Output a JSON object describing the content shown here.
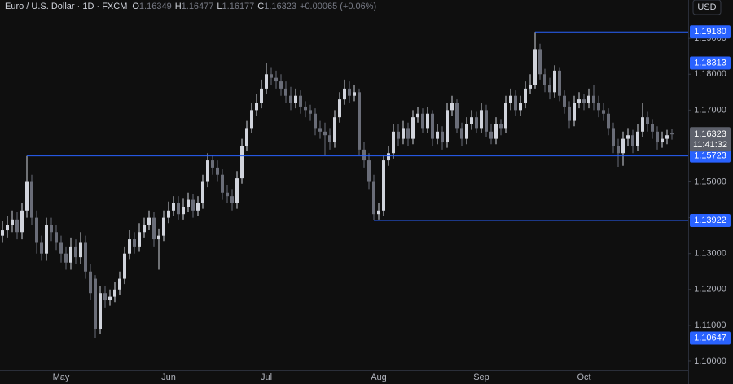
{
  "chart_data": {
    "type": "candlestick",
    "title": "Euro / U.S. Dollar · 1D · FXCM",
    "ohlc_letters": [
      "O",
      "H",
      "L",
      "C"
    ],
    "change_label": "+0.00065 (+0.06%)",
    "currency": "USD",
    "countdown": "11:41:32",
    "up_color": "#d1d4dc",
    "down_color": "#6a6d78",
    "level_color": "#2962ff",
    "grid": false,
    "categories": [
      null,
      null,
      null,
      null,
      null,
      null,
      null,
      null,
      null,
      null,
      null,
      null,
      "May",
      null,
      null,
      null,
      null,
      null,
      null,
      null,
      null,
      null,
      null,
      null,
      null,
      null,
      null,
      null,
      null,
      null,
      null,
      null,
      null,
      null,
      "Jun",
      null,
      null,
      null,
      null,
      null,
      null,
      null,
      null,
      null,
      null,
      null,
      null,
      null,
      null,
      null,
      null,
      null,
      null,
      null,
      "Jul",
      null,
      null,
      null,
      null,
      null,
      null,
      null,
      null,
      null,
      null,
      null,
      null,
      null,
      null,
      null,
      null,
      null,
      null,
      null,
      null,
      null,
      null,
      "Aug",
      null,
      null,
      null,
      null,
      null,
      null,
      null,
      null,
      null,
      null,
      null,
      null,
      null,
      null,
      null,
      null,
      null,
      null,
      null,
      null,
      "Sep",
      null,
      null,
      null,
      null,
      null,
      null,
      null,
      null,
      null,
      null,
      null,
      null,
      null,
      null,
      null,
      null,
      null,
      null,
      null,
      null,
      "Oct",
      null,
      null,
      null,
      null,
      null,
      null,
      null,
      null,
      null,
      null,
      null,
      null,
      null,
      null,
      null,
      null,
      null,
      null
    ],
    "open": [
      1.135,
      1.1365,
      1.138,
      1.1395,
      1.136,
      1.142,
      1.15,
      1.14,
      1.133,
      1.13,
      1.138,
      1.136,
      1.133,
      1.13,
      1.1275,
      1.132,
      1.129,
      1.133,
      1.125,
      1.123,
      1.109,
      1.119,
      1.117,
      1.118,
      1.12,
      1.123,
      1.13,
      1.134,
      1.132,
      1.136,
      1.138,
      1.14,
      1.134,
      1.135,
      1.14,
      1.142,
      1.144,
      1.141,
      1.143,
      1.145,
      1.142,
      1.144,
      1.15,
      1.156,
      1.154,
      1.152,
      1.147,
      1.146,
      1.144,
      1.151,
      1.16,
      1.165,
      1.17,
      1.172,
      1.176,
      1.18,
      1.179,
      1.178,
      1.176,
      1.174,
      1.172,
      1.174,
      1.171,
      1.17,
      1.169,
      1.165,
      1.164,
      1.163,
      1.161,
      1.168,
      1.173,
      1.176,
      1.174,
      1.175,
      1.159,
      1.156,
      1.15,
      1.141,
      1.142,
      1.156,
      1.158,
      1.164,
      1.162,
      1.165,
      1.162,
      1.168,
      1.169,
      1.165,
      1.169,
      1.162,
      1.164,
      1.161,
      1.17,
      1.172,
      1.165,
      1.162,
      1.166,
      1.168,
      1.165,
      1.17,
      1.164,
      1.162,
      1.166,
      1.165,
      1.172,
      1.174,
      1.17,
      1.172,
      1.176,
      1.177,
      1.187,
      1.18,
      1.177,
      1.175,
      1.181,
      1.174,
      1.171,
      1.167,
      1.172,
      1.173,
      1.172,
      1.174,
      1.172,
      1.17,
      1.169,
      1.165,
      1.16,
      1.158,
      1.162,
      1.163,
      1.16,
      1.164,
      1.168,
      1.166,
      1.164,
      1.161,
      1.162,
      1.16349
    ],
    "high": [
      1.139,
      1.1405,
      1.142,
      1.1415,
      1.144,
      1.15723,
      1.152,
      1.142,
      1.135,
      1.14,
      1.14,
      1.138,
      1.135,
      1.132,
      1.1345,
      1.134,
      1.136,
      1.135,
      1.127,
      1.124,
      1.121,
      1.121,
      1.12,
      1.122,
      1.125,
      1.132,
      1.1365,
      1.136,
      1.1385,
      1.14,
      1.142,
      1.1415,
      1.137,
      1.142,
      1.1445,
      1.146,
      1.146,
      1.1455,
      1.147,
      1.1465,
      1.146,
      1.152,
      1.158,
      1.1575,
      1.156,
      1.1535,
      1.149,
      1.148,
      1.153,
      1.162,
      1.167,
      1.172,
      1.1745,
      1.1785,
      1.18313,
      1.182,
      1.181,
      1.18,
      1.178,
      1.1765,
      1.176,
      1.1755,
      1.1725,
      1.1715,
      1.1705,
      1.167,
      1.1665,
      1.165,
      1.17,
      1.175,
      1.1785,
      1.178,
      1.177,
      1.176,
      1.161,
      1.158,
      1.152,
      1.144,
      1.1575,
      1.16,
      1.166,
      1.166,
      1.167,
      1.1665,
      1.17,
      1.171,
      1.1705,
      1.171,
      1.17,
      1.166,
      1.1655,
      1.172,
      1.174,
      1.173,
      1.1665,
      1.168,
      1.17,
      1.1695,
      1.172,
      1.1715,
      1.166,
      1.168,
      1.1675,
      1.174,
      1.176,
      1.1755,
      1.174,
      1.178,
      1.18,
      1.1918,
      1.1885,
      1.1815,
      1.179,
      1.1825,
      1.182,
      1.1755,
      1.1725,
      1.174,
      1.175,
      1.1745,
      1.176,
      1.177,
      1.174,
      1.172,
      1.1705,
      1.1665,
      1.162,
      1.164,
      1.165,
      1.1645,
      1.166,
      1.172,
      1.1695,
      1.1675,
      1.1655,
      1.164,
      1.1645,
      1.16477
    ],
    "low": [
      1.133,
      1.1345,
      1.136,
      1.134,
      1.134,
      1.14,
      1.138,
      1.13,
      1.128,
      1.128,
      1.1335,
      1.131,
      1.1275,
      1.1255,
      1.1255,
      1.127,
      1.127,
      1.123,
      1.117,
      1.10647,
      1.1075,
      1.115,
      1.1155,
      1.1165,
      1.1185,
      1.1215,
      1.1285,
      1.13,
      1.1305,
      1.1345,
      1.1365,
      1.132,
      1.1255,
      1.1335,
      1.1385,
      1.1405,
      1.1395,
      1.1395,
      1.1415,
      1.14,
      1.1405,
      1.1425,
      1.1485,
      1.152,
      1.15,
      1.145,
      1.144,
      1.142,
      1.1425,
      1.1495,
      1.1585,
      1.1635,
      1.1685,
      1.1705,
      1.1745,
      1.177,
      1.176,
      1.174,
      1.172,
      1.17,
      1.1705,
      1.169,
      1.168,
      1.167,
      1.163,
      1.162,
      1.1575,
      1.159,
      1.1595,
      1.1665,
      1.1715,
      1.172,
      1.1725,
      1.1575,
      1.154,
      1.148,
      1.13922,
      1.1395,
      1.1405,
      1.1545,
      1.1565,
      1.16,
      1.1605,
      1.16,
      1.1605,
      1.1665,
      1.1635,
      1.1635,
      1.16,
      1.1605,
      1.159,
      1.1595,
      1.1685,
      1.1635,
      1.16,
      1.1605,
      1.1645,
      1.1635,
      1.1635,
      1.1625,
      1.1605,
      1.1605,
      1.163,
      1.1635,
      1.17,
      1.1685,
      1.1685,
      1.1705,
      1.1745,
      1.176,
      1.1785,
      1.175,
      1.173,
      1.1735,
      1.1725,
      1.169,
      1.165,
      1.1655,
      1.1705,
      1.17,
      1.1705,
      1.17,
      1.168,
      1.167,
      1.163,
      1.158,
      1.1542,
      1.1545,
      1.16,
      1.158,
      1.1585,
      1.1625,
      1.164,
      1.162,
      1.159,
      1.1595,
      1.1605,
      1.16177
    ],
    "close": [
      1.1365,
      1.138,
      1.1395,
      1.136,
      1.142,
      1.15,
      1.14,
      1.133,
      1.13,
      1.138,
      1.136,
      1.133,
      1.13,
      1.1275,
      1.132,
      1.129,
      1.133,
      1.125,
      1.119,
      1.109,
      1.119,
      1.117,
      1.118,
      1.12,
      1.123,
      1.13,
      1.134,
      1.132,
      1.136,
      1.138,
      1.14,
      1.134,
      1.135,
      1.14,
      1.142,
      1.144,
      1.141,
      1.143,
      1.145,
      1.142,
      1.144,
      1.15,
      1.156,
      1.154,
      1.152,
      1.147,
      1.146,
      1.144,
      1.151,
      1.16,
      1.165,
      1.17,
      1.172,
      1.176,
      1.18,
      1.179,
      1.178,
      1.176,
      1.174,
      1.172,
      1.174,
      1.171,
      1.17,
      1.169,
      1.165,
      1.164,
      1.163,
      1.161,
      1.168,
      1.173,
      1.176,
      1.174,
      1.175,
      1.159,
      1.156,
      1.15,
      1.141,
      1.142,
      1.156,
      1.158,
      1.164,
      1.162,
      1.165,
      1.162,
      1.168,
      1.169,
      1.165,
      1.169,
      1.162,
      1.164,
      1.161,
      1.17,
      1.172,
      1.165,
      1.162,
      1.166,
      1.168,
      1.165,
      1.17,
      1.164,
      1.162,
      1.166,
      1.165,
      1.172,
      1.174,
      1.17,
      1.172,
      1.176,
      1.177,
      1.187,
      1.18,
      1.177,
      1.175,
      1.181,
      1.174,
      1.171,
      1.167,
      1.172,
      1.173,
      1.172,
      1.174,
      1.172,
      1.17,
      1.169,
      1.165,
      1.16,
      1.158,
      1.162,
      1.163,
      1.16,
      1.164,
      1.168,
      1.166,
      1.164,
      1.161,
      1.162,
      1.163,
      1.16323
    ],
    "ylim": [
      1.0975,
      1.2007
    ],
    "yticks": [
      {
        "value": 1.1,
        "label": "1.10000"
      },
      {
        "value": 1.11,
        "label": "1.11000"
      },
      {
        "value": 1.12,
        "label": "1.12000"
      },
      {
        "value": 1.13,
        "label": "1.13000"
      },
      {
        "value": 1.14,
        "label": "1.14000"
      },
      {
        "value": 1.15,
        "label": "1.15000"
      },
      {
        "value": 1.16,
        "label": "1.16000"
      },
      {
        "value": 1.17,
        "label": "1.17000"
      },
      {
        "value": 1.18,
        "label": "1.18000"
      },
      {
        "value": 1.19,
        "label": "1.19000"
      }
    ],
    "levels": [
      {
        "value": 1.1918,
        "label": "1.19180"
      },
      {
        "value": 1.18313,
        "label": "1.18313"
      },
      {
        "value": 1.15723,
        "label": "1.15723"
      },
      {
        "value": 1.13922,
        "label": "1.13922"
      },
      {
        "value": 1.10647,
        "label": "1.10647"
      }
    ]
  }
}
